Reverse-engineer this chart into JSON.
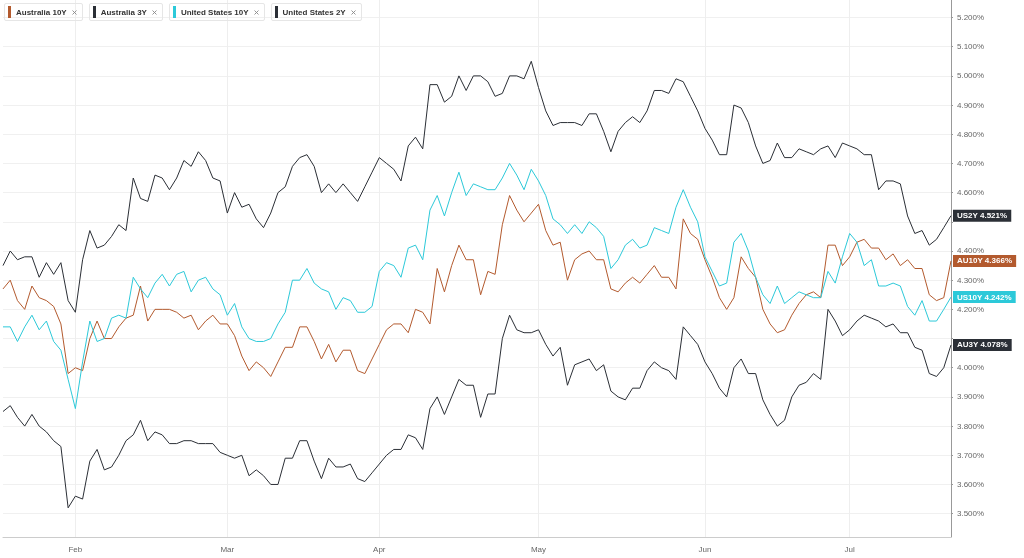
{
  "chart_data": {
    "type": "line",
    "categories": [
      null,
      null,
      null,
      null,
      null,
      null,
      null,
      null,
      null,
      null,
      "Feb",
      null,
      null,
      null,
      null,
      null,
      null,
      null,
      null,
      null,
      null,
      null,
      null,
      null,
      null,
      null,
      null,
      null,
      null,
      null,
      null,
      "Mar",
      null,
      null,
      null,
      null,
      null,
      null,
      null,
      null,
      null,
      null,
      null,
      null,
      null,
      null,
      null,
      null,
      null,
      null,
      null,
      null,
      "Apr",
      null,
      null,
      null,
      null,
      null,
      null,
      null,
      null,
      null,
      null,
      null,
      null,
      null,
      null,
      null,
      null,
      null,
      null,
      null,
      null,
      null,
      "May",
      null,
      null,
      null,
      null,
      null,
      null,
      null,
      null,
      null,
      null,
      null,
      null,
      null,
      null,
      null,
      null,
      null,
      null,
      null,
      null,
      null,
      null,
      "Jun",
      null,
      null,
      null,
      null,
      null,
      null,
      null,
      null,
      null,
      null,
      null,
      null,
      null,
      null,
      null,
      null,
      null,
      null,
      null,
      "Jul",
      null,
      null,
      null,
      null,
      null,
      null,
      null,
      null,
      null,
      null,
      null,
      null,
      null,
      null
    ],
    "series": [
      {
        "name": "Australia 10Y",
        "color": "#b35a2e",
        "values": [
          4.27,
          4.3,
          4.23,
          4.2,
          4.28,
          4.24,
          4.23,
          4.21,
          4.15,
          3.98,
          4.0,
          3.99,
          4.1,
          4.16,
          4.1,
          4.1,
          4.14,
          4.17,
          4.18,
          4.28,
          4.16,
          4.2,
          4.2,
          4.2,
          4.19,
          4.17,
          4.18,
          4.13,
          4.16,
          4.18,
          4.15,
          4.15,
          4.11,
          4.04,
          3.99,
          4.02,
          4.0,
          3.97,
          4.02,
          4.07,
          4.07,
          4.14,
          4.14,
          4.09,
          4.03,
          4.08,
          4.02,
          4.06,
          4.06,
          3.99,
          3.98,
          4.03,
          4.08,
          4.13,
          4.15,
          4.15,
          4.12,
          4.2,
          4.19,
          4.15,
          4.34,
          4.26,
          4.35,
          4.42,
          4.37,
          4.37,
          4.25,
          4.33,
          4.32,
          4.49,
          4.59,
          4.54,
          4.5,
          4.53,
          4.56,
          4.47,
          4.42,
          4.43,
          4.3,
          4.37,
          4.39,
          4.4,
          4.37,
          4.37,
          4.27,
          4.26,
          4.29,
          4.31,
          4.29,
          4.32,
          4.35,
          4.31,
          4.31,
          4.27,
          4.51,
          4.46,
          4.44,
          4.37,
          4.31,
          4.24,
          4.2,
          4.24,
          4.38,
          4.34,
          4.31,
          4.2,
          4.15,
          4.12,
          4.13,
          4.18,
          4.22,
          4.25,
          4.26,
          4.24,
          4.42,
          4.42,
          4.35,
          4.38,
          4.43,
          4.44,
          4.41,
          4.41,
          4.37,
          4.39,
          4.35,
          4.37,
          4.34,
          4.34,
          4.25,
          4.23,
          4.24,
          4.366
        ]
      },
      {
        "name": "Australia 3Y",
        "color": "#2b2f36",
        "values": [
          3.85,
          3.87,
          3.83,
          3.8,
          3.84,
          3.8,
          3.78,
          3.75,
          3.73,
          3.52,
          3.56,
          3.55,
          3.68,
          3.72,
          3.65,
          3.66,
          3.7,
          3.75,
          3.77,
          3.82,
          3.75,
          3.78,
          3.77,
          3.74,
          3.74,
          3.75,
          3.75,
          3.74,
          3.74,
          3.74,
          3.71,
          3.7,
          3.69,
          3.7,
          3.63,
          3.65,
          3.63,
          3.6,
          3.6,
          3.69,
          3.69,
          3.75,
          3.75,
          3.68,
          3.62,
          3.69,
          3.66,
          3.66,
          3.67,
          3.62,
          3.61,
          3.64,
          3.67,
          3.7,
          3.72,
          3.72,
          3.77,
          3.76,
          3.72,
          3.86,
          3.9,
          3.84,
          3.9,
          3.96,
          3.94,
          3.94,
          3.83,
          3.91,
          3.91,
          4.1,
          4.18,
          4.13,
          4.12,
          4.12,
          4.13,
          4.08,
          4.04,
          4.07,
          3.94,
          4.01,
          4.02,
          4.03,
          3.99,
          4.01,
          3.92,
          3.9,
          3.89,
          3.93,
          3.93,
          3.99,
          4.02,
          4.0,
          3.99,
          3.96,
          4.14,
          4.11,
          4.08,
          4.02,
          3.98,
          3.93,
          3.9,
          4.0,
          4.03,
          3.98,
          3.98,
          3.89,
          3.84,
          3.8,
          3.82,
          3.9,
          3.94,
          3.95,
          3.98,
          3.96,
          4.2,
          4.16,
          4.11,
          4.13,
          4.16,
          4.18,
          4.17,
          4.16,
          4.14,
          4.15,
          4.12,
          4.12,
          4.07,
          4.06,
          3.98,
          3.97,
          4.0,
          4.078
        ]
      },
      {
        "name": "United States 10Y",
        "color": "#2cc9d9",
        "values": [
          4.14,
          4.14,
          4.09,
          4.14,
          4.18,
          4.13,
          4.16,
          4.09,
          4.06,
          3.96,
          3.86,
          4.02,
          4.16,
          4.09,
          4.1,
          4.17,
          4.18,
          4.17,
          4.31,
          4.27,
          4.24,
          4.29,
          4.32,
          4.28,
          4.32,
          4.33,
          4.26,
          4.3,
          4.31,
          4.27,
          4.25,
          4.18,
          4.22,
          4.14,
          4.1,
          4.09,
          4.09,
          4.1,
          4.15,
          4.19,
          4.3,
          4.3,
          4.34,
          4.29,
          4.27,
          4.26,
          4.2,
          4.24,
          4.23,
          4.19,
          4.19,
          4.21,
          4.33,
          4.36,
          4.35,
          4.31,
          4.41,
          4.42,
          4.37,
          4.54,
          4.59,
          4.52,
          4.6,
          4.67,
          4.59,
          4.63,
          4.62,
          4.61,
          4.61,
          4.65,
          4.7,
          4.66,
          4.61,
          4.68,
          4.64,
          4.59,
          4.51,
          4.49,
          4.46,
          4.49,
          4.46,
          4.5,
          4.48,
          4.45,
          4.34,
          4.37,
          4.42,
          4.44,
          4.41,
          4.42,
          4.48,
          4.47,
          4.46,
          4.55,
          4.61,
          4.55,
          4.5,
          4.38,
          4.33,
          4.28,
          4.29,
          4.43,
          4.46,
          4.4,
          4.31,
          4.25,
          4.22,
          4.28,
          4.22,
          4.24,
          4.26,
          4.25,
          4.24,
          4.24,
          4.33,
          4.29,
          4.38,
          4.46,
          4.43,
          4.35,
          4.37,
          4.28,
          4.28,
          4.29,
          4.28,
          4.21,
          4.18,
          4.23,
          4.16,
          4.16,
          4.2,
          4.242
        ]
      },
      {
        "name": "United States 2Y",
        "color": "#2b2f36",
        "values": [
          4.35,
          4.4,
          4.37,
          4.38,
          4.38,
          4.31,
          4.36,
          4.32,
          4.36,
          4.23,
          4.19,
          4.37,
          4.47,
          4.41,
          4.42,
          4.45,
          4.49,
          4.47,
          4.65,
          4.58,
          4.57,
          4.66,
          4.65,
          4.61,
          4.65,
          4.71,
          4.69,
          4.74,
          4.71,
          4.65,
          4.64,
          4.53,
          4.6,
          4.55,
          4.56,
          4.51,
          4.48,
          4.53,
          4.6,
          4.62,
          4.69,
          4.72,
          4.73,
          4.69,
          4.6,
          4.63,
          4.6,
          4.63,
          4.6,
          4.57,
          4.62,
          4.67,
          4.72,
          4.7,
          4.68,
          4.64,
          4.76,
          4.79,
          4.75,
          4.97,
          4.97,
          4.91,
          4.93,
          5.0,
          4.95,
          5.0,
          5.0,
          4.98,
          4.93,
          4.94,
          5.0,
          5.0,
          4.99,
          5.05,
          4.96,
          4.88,
          4.83,
          4.84,
          4.84,
          4.84,
          4.83,
          4.87,
          4.87,
          4.81,
          4.74,
          4.81,
          4.84,
          4.86,
          4.84,
          4.88,
          4.95,
          4.95,
          4.94,
          4.99,
          4.98,
          4.93,
          4.88,
          4.82,
          4.78,
          4.73,
          4.73,
          4.9,
          4.89,
          4.84,
          4.76,
          4.7,
          4.71,
          4.77,
          4.72,
          4.72,
          4.75,
          4.74,
          4.73,
          4.75,
          4.76,
          4.72,
          4.77,
          4.76,
          4.75,
          4.73,
          4.73,
          4.61,
          4.64,
          4.64,
          4.63,
          4.52,
          4.46,
          4.47,
          4.42,
          4.44,
          4.48,
          4.521
        ]
      }
    ],
    "ylim": [
      3.42,
      5.26
    ],
    "yticks": [
      {
        "value": 3.5,
        "label": "3.500%"
      },
      {
        "value": 3.6,
        "label": "3.600%"
      },
      {
        "value": 3.7,
        "label": "3.700%"
      },
      {
        "value": 3.8,
        "label": "3.800%"
      },
      {
        "value": 3.9,
        "label": "3.900%"
      },
      {
        "value": 4.0,
        "label": "4.000%"
      },
      {
        "value": 4.1,
        "label": null
      },
      {
        "value": 4.2,
        "label": "4.200%"
      },
      {
        "value": 4.3,
        "label": "4.300%"
      },
      {
        "value": 4.4,
        "label": "4.400%"
      },
      {
        "value": 4.5,
        "label": null
      },
      {
        "value": 4.6,
        "label": "4.600%"
      },
      {
        "value": 4.7,
        "label": "4.700%"
      },
      {
        "value": 4.8,
        "label": "4.800%"
      },
      {
        "value": 4.9,
        "label": "4.900%"
      },
      {
        "value": 5.0,
        "label": "5.000%"
      },
      {
        "value": 5.1,
        "label": "5.100%"
      },
      {
        "value": 5.2,
        "label": "5.200%"
      }
    ],
    "annotations": [
      "AU10Y 4.366%",
      "AU3Y 4.078%",
      "US10Y 4.242%",
      "US2Y 4.521%"
    ],
    "grid": true,
    "legend": "top left",
    "marker": "none",
    "line_style": "solid"
  }
}
